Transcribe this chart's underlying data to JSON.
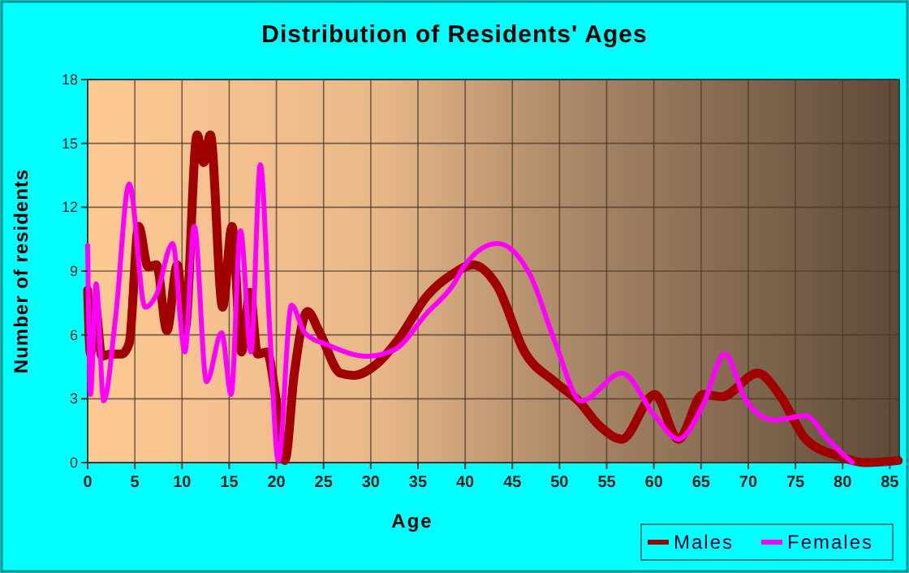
{
  "chart_data": {
    "type": "line",
    "title": "Distribution of Residents' Ages",
    "xlabel": "Age",
    "ylabel": "Number of residents",
    "xlim": [
      0,
      86
    ],
    "xticks": [
      0,
      5,
      10,
      15,
      20,
      25,
      30,
      35,
      40,
      45,
      50,
      55,
      60,
      65,
      70,
      75,
      80,
      85
    ],
    "ylim": [
      0,
      18
    ],
    "yticks": [
      0,
      3,
      6,
      9,
      12,
      15,
      18
    ],
    "grid": true,
    "legend": "bottom right",
    "marker": "none",
    "line_style": "solid",
    "series": [
      {
        "name": "Males",
        "color": "#a00000",
        "x": [
          0,
          0.3,
          0.8,
          1.5,
          2.4,
          3.6,
          4.4,
          5.4,
          6.4,
          7.3,
          8.4,
          9.5,
          10.3,
          11.6,
          12.3,
          13,
          14.3,
          15.3,
          16.3,
          17.2,
          18,
          19,
          19.9,
          20.9,
          21.9,
          23.3,
          24.5,
          26.8,
          28.2,
          30.8,
          33.1,
          35.9,
          38.8,
          40.8,
          43.4,
          46.3,
          49.5,
          52,
          54.3,
          56.6,
          60.1,
          62.6,
          65.2,
          67.2,
          71,
          73.3,
          76.1,
          79.6,
          82.4,
          85.9
        ],
        "values": [
          8.1,
          5.1,
          7.4,
          5,
          5.1,
          5.1,
          5.6,
          11.1,
          9.2,
          9.3,
          6.2,
          9.3,
          6.2,
          15.4,
          14.1,
          15.4,
          7.3,
          11.1,
          5.2,
          8,
          5.1,
          5.2,
          3.2,
          0.1,
          4.2,
          7.1,
          6.2,
          4.2,
          4.1,
          4.7,
          5.9,
          7.8,
          8.9,
          9.3,
          8.3,
          5.2,
          3.8,
          2.9,
          1.7,
          1.1,
          3.2,
          1.1,
          3.2,
          3.1,
          4.2,
          3.2,
          1.1,
          0.3,
          0,
          0.1
        ]
      },
      {
        "name": "Females",
        "color": "#ff00ff",
        "x": [
          0,
          0.3,
          0.9,
          1.7,
          3,
          4.4,
          6.1,
          7.3,
          9,
          10.3,
          11.3,
          12.6,
          14.2,
          15.2,
          16.2,
          17.3,
          18.3,
          19.3,
          20.2,
          21.6,
          23,
          25.6,
          29.6,
          32.5,
          35.9,
          38.8,
          40,
          43.4,
          46.9,
          49.5,
          52.3,
          56.6,
          60.1,
          62.6,
          65.2,
          67.5,
          69.8,
          72.7,
          76.1,
          78.4,
          81
        ],
        "values": [
          10.2,
          3.2,
          8.4,
          2.9,
          7,
          13.1,
          7.3,
          7.9,
          10.3,
          5.2,
          11.1,
          3.8,
          6.1,
          3.2,
          10.9,
          5.2,
          14,
          6.2,
          0.1,
          7.4,
          6.1,
          5.5,
          5,
          5.3,
          7,
          8.4,
          9.3,
          10.3,
          8.8,
          5.7,
          2.9,
          4.2,
          2.2,
          1.1,
          2.7,
          5.1,
          2.9,
          2,
          2.2,
          1.1,
          0
        ]
      }
    ]
  }
}
